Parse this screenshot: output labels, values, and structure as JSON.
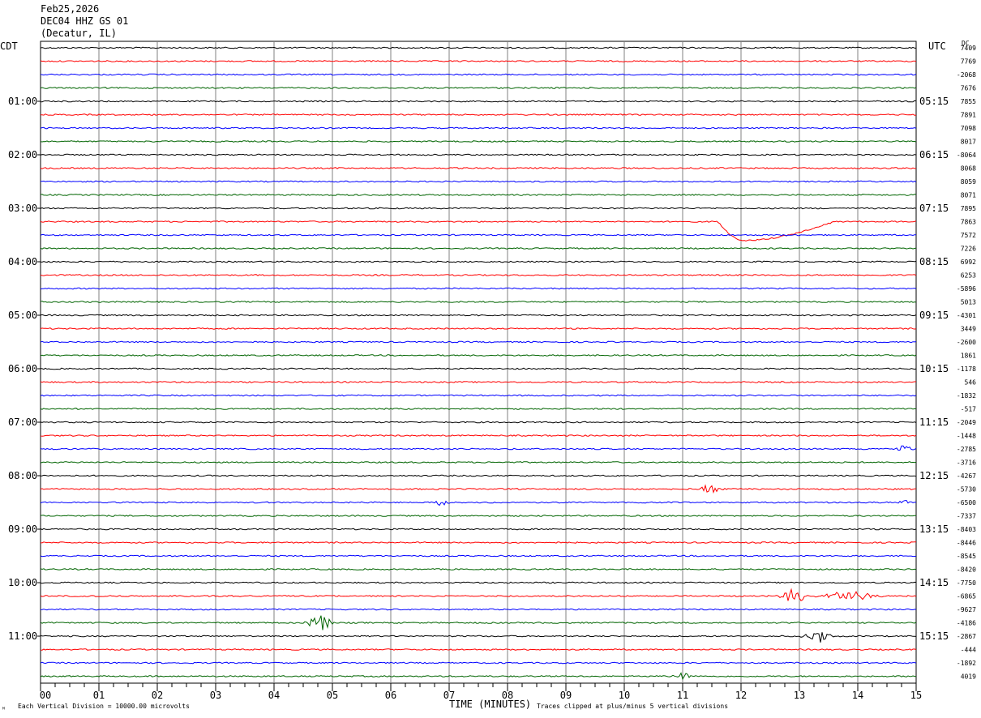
{
  "header": {
    "date": "Feb25,2026",
    "station": "DEC04 HHZ GS 01",
    "location": "(Decatur, IL)"
  },
  "left_timezone": "CDT",
  "right_timezone": "UTC",
  "dc_label": "DC",
  "footer": {
    "scale_note": "Each Vertical Division = 10000.00 microvolts",
    "corner_mark": "ᴹ",
    "clip_note": "Traces clipped at plus/minus 5 vertical divisions"
  },
  "chart_data": {
    "type": "line",
    "title": "",
    "xlabel": "TIME (MINUTES)",
    "ylabel": "",
    "xlim": [
      0,
      15
    ],
    "x_ticks": [
      "00",
      "01",
      "02",
      "03",
      "04",
      "05",
      "06",
      "07",
      "08",
      "09",
      "10",
      "11",
      "12",
      "13",
      "14",
      "15"
    ],
    "minutes_per_trace": 15,
    "trace_colors": [
      "#000000",
      "#ff0000",
      "#0000ff",
      "#006400"
    ],
    "grid": true,
    "left_hour_labels": [
      "01:00",
      "02:00",
      "03:00",
      "04:00",
      "05:00",
      "06:00",
      "07:00",
      "08:00",
      "09:00",
      "10:00",
      "11:00"
    ],
    "right_hour_labels": [
      "05:15",
      "06:15",
      "07:15",
      "08:15",
      "09:15",
      "10:15",
      "11:15",
      "12:15",
      "13:15",
      "14:15",
      "15:15"
    ],
    "dc_offsets": [
      "7409",
      "7769",
      "-2068",
      "7676",
      "7855",
      "7891",
      "7098",
      "8017",
      "-8064",
      "8068",
      "8059",
      "8071",
      "7895",
      "7863",
      "7572",
      "7226",
      "6992",
      "6253",
      "-5896",
      "5013",
      "-4301",
      "3449",
      "-2600",
      "1861",
      "-1178",
      "546",
      "-1832",
      "-517",
      "-2049",
      "-1448",
      "-2785",
      "-3716",
      "-4267",
      "-5730",
      "-6500",
      "-7337",
      "-8403",
      "-8446",
      "-8545",
      "-8420",
      "-7750",
      "-6865",
      "-9627",
      "-4186",
      "-2867",
      "-444",
      "-1892",
      "4019"
    ],
    "events": [
      {
        "trace": 13,
        "type": "drift",
        "start_min": 11.6,
        "min_min": 12.05,
        "end_min": 13.6,
        "amplitude_div": 1.4
      },
      {
        "trace": 33,
        "type": "burst",
        "center_min": 11.45,
        "width_min": 0.3,
        "amplitude_div": 0.3
      },
      {
        "trace": 34,
        "type": "burst",
        "center_min": 6.85,
        "width_min": 0.2,
        "amplitude_div": 0.25
      },
      {
        "trace": 34,
        "type": "burst",
        "center_min": 14.8,
        "width_min": 0.2,
        "amplitude_div": 0.25
      },
      {
        "trace": 30,
        "type": "burst",
        "center_min": 14.8,
        "width_min": 0.25,
        "amplitude_div": 0.3
      },
      {
        "trace": 41,
        "type": "burst",
        "center_min": 12.9,
        "width_min": 0.4,
        "amplitude_div": 0.55
      },
      {
        "trace": 41,
        "type": "burst",
        "center_min": 13.8,
        "width_min": 0.9,
        "amplitude_div": 0.4
      },
      {
        "trace": 43,
        "type": "burst",
        "center_min": 4.8,
        "width_min": 0.35,
        "amplitude_div": 0.6
      },
      {
        "trace": 44,
        "type": "burst",
        "center_min": 13.3,
        "width_min": 0.4,
        "amplitude_div": 0.5
      },
      {
        "trace": 47,
        "type": "burst",
        "center_min": 11.0,
        "width_min": 0.25,
        "amplitude_div": 0.3
      }
    ]
  }
}
